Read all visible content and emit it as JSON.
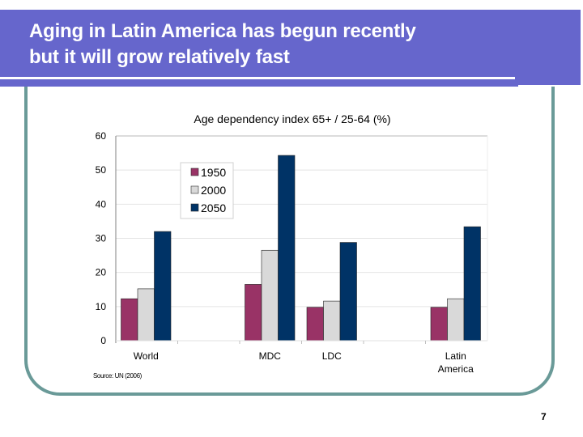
{
  "slide": {
    "title_line1": "Aging in Latin America has begun recently",
    "title_line2": "but it will grow relatively fast",
    "page_number": "7",
    "colors": {
      "banner": "#6666cc",
      "frame": "#6a9a98"
    }
  },
  "chart_data": {
    "type": "bar",
    "title": "Age dependency index 65+  / 25-64 (%)",
    "xlabel": "",
    "ylabel": "",
    "ylim": [
      0,
      60
    ],
    "yticks": [
      0,
      10,
      20,
      30,
      40,
      50,
      60
    ],
    "grid": true,
    "legend_position": "top-left",
    "categories": [
      "World",
      "",
      "MDC",
      "LDC",
      "",
      "Latin America"
    ],
    "category_labels": [
      [
        "World"
      ],
      [],
      [
        "MDC"
      ],
      [
        "LDC"
      ],
      [],
      [
        "Latin",
        "America"
      ]
    ],
    "series": [
      {
        "name": "1950",
        "color": "#993366",
        "values": [
          12.3,
          null,
          16.5,
          9.8,
          null,
          9.8
        ]
      },
      {
        "name": "2000",
        "color": "#d9d9d9",
        "values": [
          15.2,
          null,
          26.5,
          11.6,
          null,
          12.3
        ]
      },
      {
        "name": "2050",
        "color": "#003366",
        "values": [
          32.0,
          null,
          54.3,
          28.8,
          null,
          33.4
        ]
      }
    ],
    "source_note": "Source: UN (2006)"
  }
}
